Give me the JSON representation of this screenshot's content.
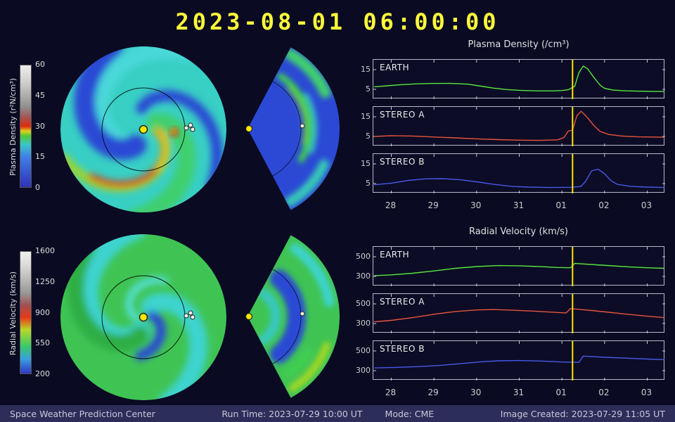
{
  "title": "2023-08-01 06:00:00",
  "colors": {
    "background": "#0a0a22",
    "title": "#fdfd3a",
    "time_marker": "#ffe400",
    "axis": "#c8c8d4",
    "footer_bg": "#2d2d5a",
    "earth": "#55e83c",
    "stereo_a": "#e8543c",
    "stereo_b": "#4858e8"
  },
  "footer": {
    "source": "Space Weather Prediction Center",
    "run_time": "Run Time: 2023-07-29 10:00 UT",
    "mode": "Mode: CME",
    "created": "Image Created: 2023-07-29 11:05 UT"
  },
  "colorbars": [
    {
      "id": "density",
      "label": "Plasma Density (r²N/cm³)",
      "ticks": [
        "0",
        "15",
        "30",
        "45",
        "60"
      ]
    },
    {
      "id": "velocity",
      "label": "Radial Velocity (km/s)",
      "ticks": [
        "200",
        "550",
        "900",
        "1250",
        "1600"
      ]
    }
  ],
  "maps": {
    "left_view": "heliospheric equatorial plane map (sun centered, 1 AU orbit ring, Earth and STEREO markers)",
    "middle_view": "meridional wedge slice (sun at apex, Earth marker)"
  },
  "chart_data": [
    {
      "type": "line",
      "title": "Plasma Density (/cm³)",
      "x_range": [
        27.58,
        34.42
      ],
      "x_ticks": {
        "values": [
          28,
          29,
          30,
          31,
          32,
          33,
          34
        ],
        "labels": [
          "28",
          "29",
          "30",
          "31",
          "01",
          "02",
          "03"
        ]
      },
      "current_time_x": 32.25,
      "ylim": [
        0,
        20
      ],
      "y_ticks": [
        5,
        15
      ],
      "series": [
        {
          "name": "EARTH",
          "color": "#55e83c",
          "points": [
            [
              27.6,
              6.3
            ],
            [
              27.9,
              6.8
            ],
            [
              28.2,
              7.3
            ],
            [
              28.6,
              7.8
            ],
            [
              29.0,
              8.0
            ],
            [
              29.4,
              8.0
            ],
            [
              29.8,
              7.6
            ],
            [
              30.1,
              6.6
            ],
            [
              30.4,
              5.6
            ],
            [
              30.7,
              4.9
            ],
            [
              31.0,
              4.5
            ],
            [
              31.4,
              4.2
            ],
            [
              31.8,
              4.2
            ],
            [
              32.0,
              4.4
            ],
            [
              32.15,
              4.8
            ],
            [
              32.3,
              6.5
            ],
            [
              32.4,
              13.5
            ],
            [
              32.5,
              16.8
            ],
            [
              32.6,
              15.5
            ],
            [
              32.75,
              11.0
            ],
            [
              32.9,
              7.0
            ],
            [
              33.0,
              5.5
            ],
            [
              33.2,
              4.6
            ],
            [
              33.5,
              4.2
            ],
            [
              34.0,
              4.0
            ],
            [
              34.4,
              3.9
            ]
          ]
        },
        {
          "name": "STEREO A",
          "color": "#e8543c",
          "points": [
            [
              27.6,
              5.0
            ],
            [
              28.0,
              5.4
            ],
            [
              28.5,
              5.2
            ],
            [
              29.0,
              4.7
            ],
            [
              29.5,
              4.3
            ],
            [
              30.0,
              3.8
            ],
            [
              30.5,
              3.4
            ],
            [
              31.0,
              3.1
            ],
            [
              31.5,
              3.0
            ],
            [
              31.9,
              3.3
            ],
            [
              32.05,
              4.5
            ],
            [
              32.15,
              7.8
            ],
            [
              32.25,
              8.2
            ],
            [
              32.35,
              15.5
            ],
            [
              32.45,
              17.8
            ],
            [
              32.6,
              14.5
            ],
            [
              32.75,
              10.5
            ],
            [
              32.9,
              7.5
            ],
            [
              33.1,
              6.0
            ],
            [
              33.4,
              5.2
            ],
            [
              33.8,
              4.8
            ],
            [
              34.4,
              4.6
            ]
          ]
        },
        {
          "name": "STEREO B",
          "color": "#4858e8",
          "points": [
            [
              27.6,
              4.4
            ],
            [
              28.0,
              5.2
            ],
            [
              28.4,
              6.6
            ],
            [
              28.8,
              7.4
            ],
            [
              29.2,
              7.5
            ],
            [
              29.6,
              7.0
            ],
            [
              30.0,
              5.9
            ],
            [
              30.4,
              4.6
            ],
            [
              30.8,
              3.6
            ],
            [
              31.2,
              3.2
            ],
            [
              31.7,
              3.0
            ],
            [
              32.25,
              3.1
            ],
            [
              32.45,
              3.6
            ],
            [
              32.55,
              6.0
            ],
            [
              32.7,
              11.5
            ],
            [
              32.85,
              12.3
            ],
            [
              33.0,
              10.0
            ],
            [
              33.15,
              6.5
            ],
            [
              33.3,
              4.6
            ],
            [
              33.6,
              3.6
            ],
            [
              34.0,
              3.2
            ],
            [
              34.4,
              3.0
            ]
          ]
        }
      ]
    },
    {
      "type": "line",
      "title": "Radial Velocity (km/s)",
      "x_range": [
        27.58,
        34.42
      ],
      "x_ticks": {
        "values": [
          28,
          29,
          30,
          31,
          32,
          33,
          34
        ],
        "labels": [
          "28",
          "29",
          "30",
          "31",
          "01",
          "02",
          "03"
        ]
      },
      "current_time_x": 32.25,
      "ylim": [
        200,
        600
      ],
      "y_ticks": [
        300,
        500
      ],
      "series": [
        {
          "name": "EARTH",
          "color": "#55e83c",
          "points": [
            [
              27.6,
              308
            ],
            [
              28.0,
              316
            ],
            [
              28.5,
              332
            ],
            [
              29.0,
              356
            ],
            [
              29.5,
              382
            ],
            [
              30.0,
              400
            ],
            [
              30.5,
              410
            ],
            [
              31.0,
              408
            ],
            [
              31.5,
              399
            ],
            [
              31.9,
              391
            ],
            [
              32.2,
              388
            ],
            [
              32.3,
              432
            ],
            [
              32.45,
              428
            ],
            [
              32.8,
              418
            ],
            [
              33.2,
              407
            ],
            [
              33.6,
              396
            ],
            [
              34.0,
              388
            ],
            [
              34.4,
              382
            ]
          ]
        },
        {
          "name": "STEREO A",
          "color": "#e8543c",
          "points": [
            [
              27.6,
              318
            ],
            [
              28.0,
              332
            ],
            [
              28.5,
              360
            ],
            [
              29.0,
              394
            ],
            [
              29.5,
              422
            ],
            [
              30.0,
              438
            ],
            [
              30.4,
              442
            ],
            [
              30.9,
              434
            ],
            [
              31.4,
              424
            ],
            [
              31.9,
              412
            ],
            [
              32.1,
              408
            ],
            [
              32.2,
              452
            ],
            [
              32.35,
              446
            ],
            [
              32.7,
              432
            ],
            [
              33.1,
              414
            ],
            [
              33.5,
              396
            ],
            [
              34.0,
              374
            ],
            [
              34.4,
              360
            ]
          ]
        },
        {
          "name": "STEREO B",
          "color": "#4858e8",
          "points": [
            [
              27.6,
              328
            ],
            [
              28.1,
              333
            ],
            [
              28.6,
              341
            ],
            [
              29.1,
              352
            ],
            [
              29.6,
              370
            ],
            [
              30.1,
              390
            ],
            [
              30.5,
              400
            ],
            [
              31.0,
              403
            ],
            [
              31.5,
              398
            ],
            [
              32.0,
              388
            ],
            [
              32.4,
              384
            ],
            [
              32.5,
              448
            ],
            [
              32.65,
              444
            ],
            [
              33.0,
              436
            ],
            [
              33.5,
              427
            ],
            [
              34.0,
              418
            ],
            [
              34.4,
              412
            ]
          ]
        }
      ]
    }
  ]
}
